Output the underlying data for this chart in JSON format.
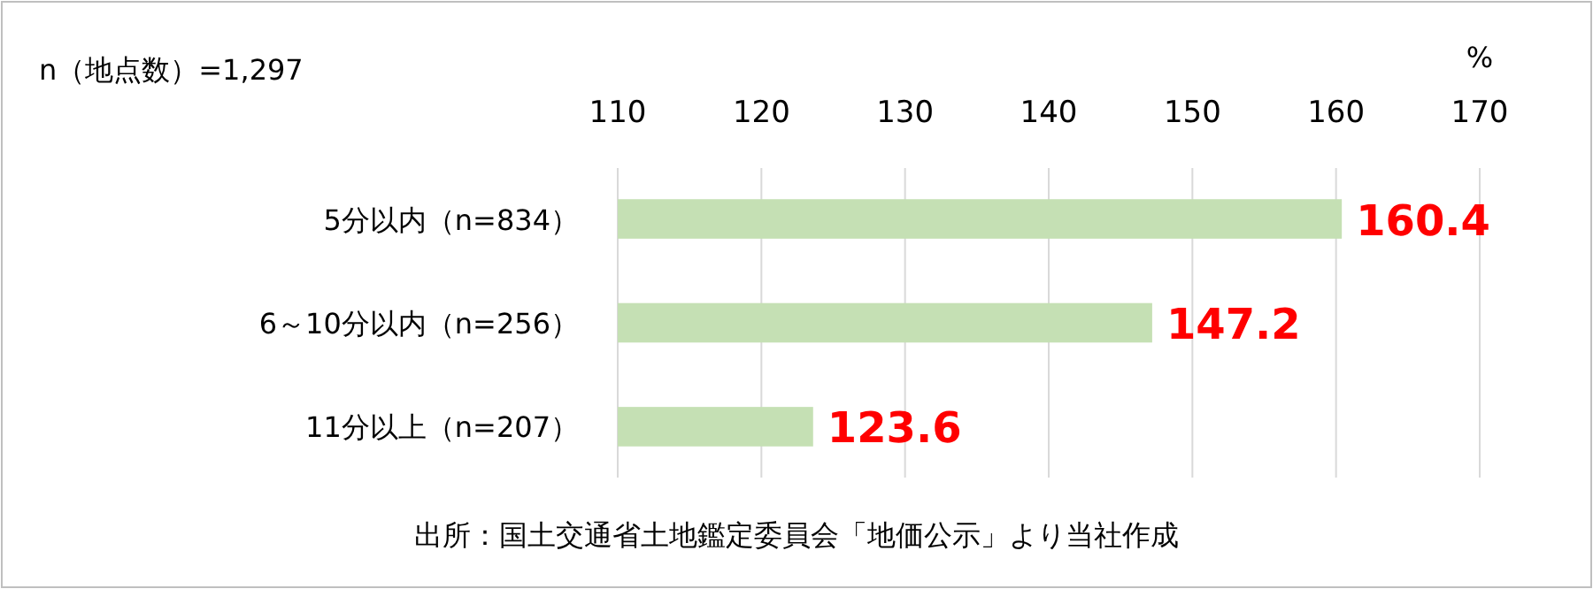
{
  "chart_data": {
    "type": "bar",
    "orientation": "horizontal",
    "subtitle": "n（地点数）=1,297",
    "xlabel": "%",
    "categories": [
      "5分以内（n=834）",
      "6～10分以内（n=256）",
      "11分以上（n=207）"
    ],
    "values": [
      160.4,
      147.2,
      123.6
    ],
    "color": "#c5e0b4",
    "xlim": [
      110,
      170
    ],
    "xticks": [
      110,
      120,
      130,
      140,
      150,
      160,
      170
    ],
    "grid": "x",
    "data_labels": true,
    "legend": false,
    "annotations": [
      "出所：国土交通省土地鑑定委員会「地価公示」より当社作成"
    ]
  }
}
